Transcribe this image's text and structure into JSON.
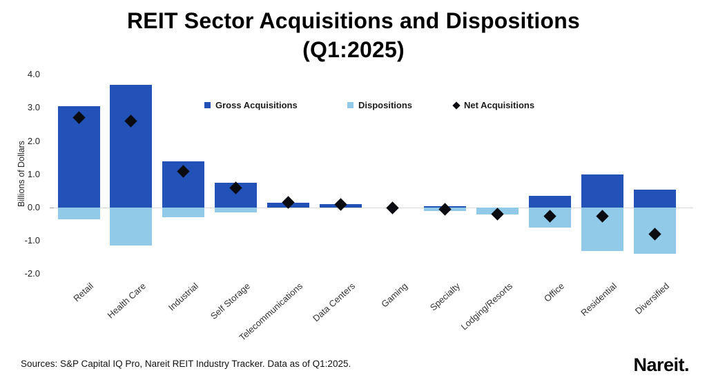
{
  "title": {
    "line1": "REIT Sector Acquisitions and Dispositions",
    "line2": "(Q1:2025)"
  },
  "chart_data": {
    "type": "bar",
    "title": "REIT Sector Acquisitions and Dispositions (Q1:2025)",
    "ylabel": "Billions of Dollars",
    "ylim": [
      -2.0,
      4.0
    ],
    "yticks": [
      4.0,
      3.0,
      2.0,
      1.0,
      0.0,
      -1.0,
      -2.0
    ],
    "grid": "zero-line-only",
    "legend_position": "top-center",
    "categories": [
      "Retail",
      "Health Care",
      "Industrial",
      "Self Storage",
      "Telecommunications",
      "Data Centers",
      "Gaming",
      "Specialty",
      "Lodging/Resorts",
      "Office",
      "Residential",
      "Diversified"
    ],
    "series": [
      {
        "name": "Gross Acquisitions",
        "type": "bar",
        "color": "#2251b7",
        "values": [
          3.05,
          3.7,
          1.4,
          0.75,
          0.15,
          0.1,
          0.0,
          0.05,
          0.0,
          0.35,
          1.0,
          0.55
        ]
      },
      {
        "name": "Dispositions",
        "type": "bar",
        "color": "#90cae8",
        "values": [
          -0.35,
          -1.15,
          -0.3,
          -0.15,
          0.0,
          0.0,
          0.0,
          -0.1,
          -0.2,
          -0.6,
          -1.3,
          -1.4
        ]
      },
      {
        "name": "Net Acquisitions",
        "type": "scatter-diamond",
        "color": "#0b0b12",
        "values": [
          2.7,
          2.6,
          1.1,
          0.6,
          0.15,
          0.1,
          0.0,
          -0.05,
          -0.2,
          -0.25,
          -0.25,
          -0.8
        ]
      }
    ]
  },
  "legend": {
    "items": [
      {
        "label": "Gross Acquisitions",
        "swatch": "square",
        "color": "#2251b7"
      },
      {
        "label": "Dispositions",
        "swatch": "square",
        "color": "#90cae8"
      },
      {
        "label": "Net Acquisitions",
        "swatch": "diamond",
        "color": "#0b0b12"
      }
    ]
  },
  "footer": {
    "source": "Sources: S&P Capital IQ Pro, Nareit REIT Industry Tracker. Data as of Q1:2025.",
    "logo": "Nareit."
  }
}
